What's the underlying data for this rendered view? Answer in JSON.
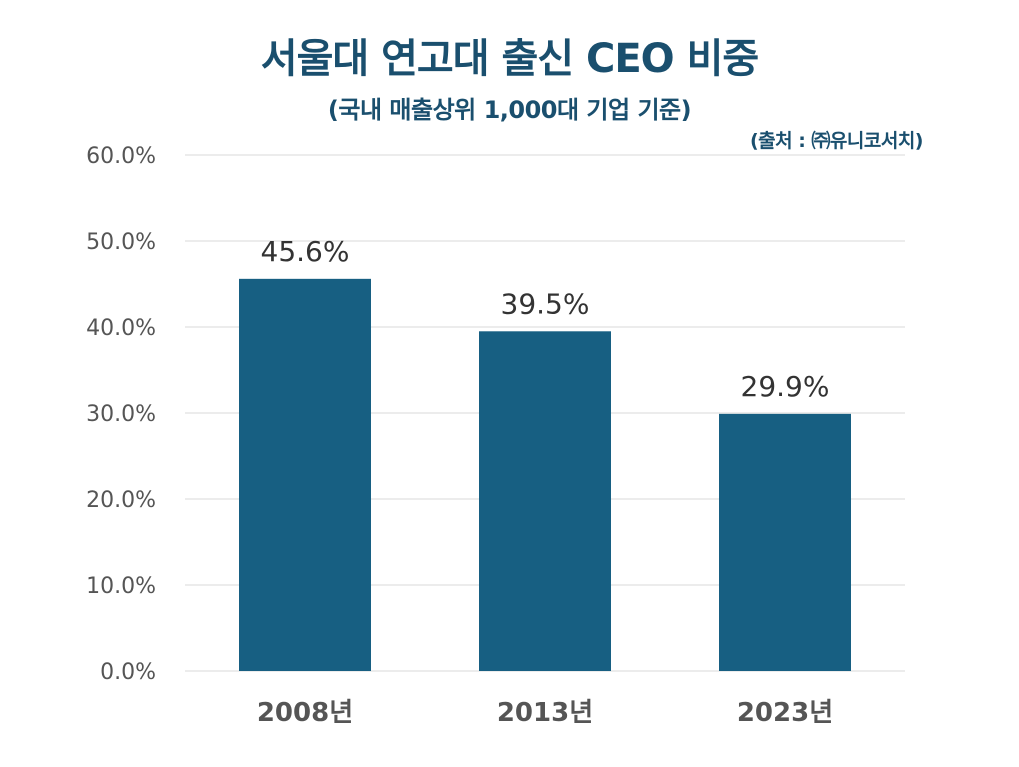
{
  "title": "서울대 연고대 출신 CEO 비중",
  "subtitle": "(국내 매출상위 1,000대 기업 기준)",
  "source": "(출처 : ㈜유니코서치)",
  "colors": {
    "bar": "#175f82",
    "title": "#1a4f6e",
    "grid": "#d9d9d9"
  },
  "chart_data": {
    "type": "bar",
    "categories": [
      "2008년",
      "2013년",
      "2023년"
    ],
    "values": [
      45.6,
      39.5,
      29.9
    ],
    "value_labels": [
      "45.6%",
      "39.5%",
      "29.9%"
    ],
    "y_ticks": [
      "0.0%",
      "10.0%",
      "20.0%",
      "30.0%",
      "40.0%",
      "50.0%",
      "60.0%"
    ],
    "ylim": [
      0,
      60
    ],
    "grid": true,
    "legend": "none"
  }
}
